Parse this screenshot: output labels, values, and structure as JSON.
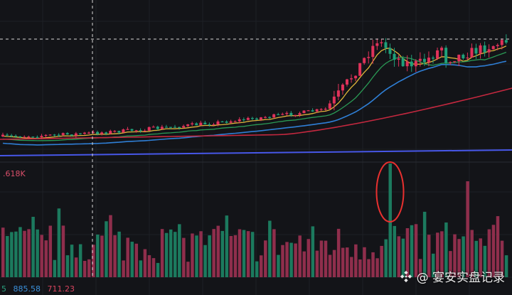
{
  "chart_data": {
    "type": "candlestick",
    "volume_axis_label": ".618K",
    "bottom_values": [
      "5",
      "885.58",
      "711.23"
    ],
    "watermark": "@ 宴安实盘记录",
    "colors": {
      "up": "#e0325a",
      "down": "#1fa07a",
      "ma_fast": "#e0b53a",
      "ma_mid": "#2a9a55",
      "ma_slow": "#2f7fd6",
      "ma_long": "#c4283f",
      "ma_longer": "#4757e8",
      "volume_up": "#8f2e4c",
      "volume_down": "#1c7a5e",
      "annotation_circle": "#e8302f"
    }
  }
}
